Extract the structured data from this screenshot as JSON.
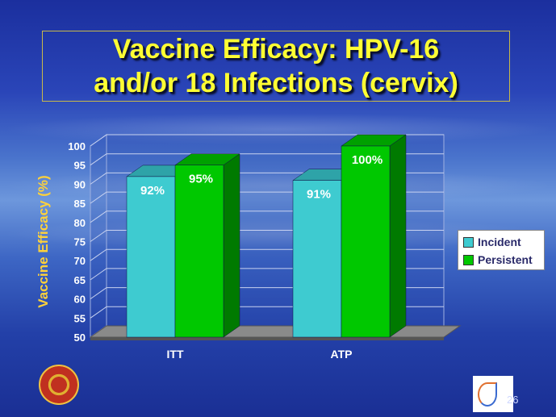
{
  "title_lines": [
    "Vaccine Efficacy: HPV-16",
    "and/or 18 Infections (cervix)"
  ],
  "page_number": "26",
  "colors": {
    "incident": "#3ecbd0",
    "persistent": "#00c800",
    "title": "#ffff33",
    "axis_label": "#ffd23a"
  },
  "chart_data": {
    "type": "bar",
    "categories": [
      "ITT",
      "ATP"
    ],
    "series": [
      {
        "name": "Incident",
        "values": [
          92,
          91
        ],
        "labels": [
          "92%",
          "91%"
        ]
      },
      {
        "name": "Persistent",
        "values": [
          95,
          100
        ],
        "labels": [
          "95%",
          "100%"
        ]
      }
    ],
    "ylabel": "Vaccine Efficacy (%)",
    "ylim": [
      50,
      100
    ],
    "yticks": [
      50,
      55,
      60,
      65,
      70,
      75,
      80,
      85,
      90,
      95,
      100
    ],
    "grid": true,
    "legend_position": "right"
  }
}
